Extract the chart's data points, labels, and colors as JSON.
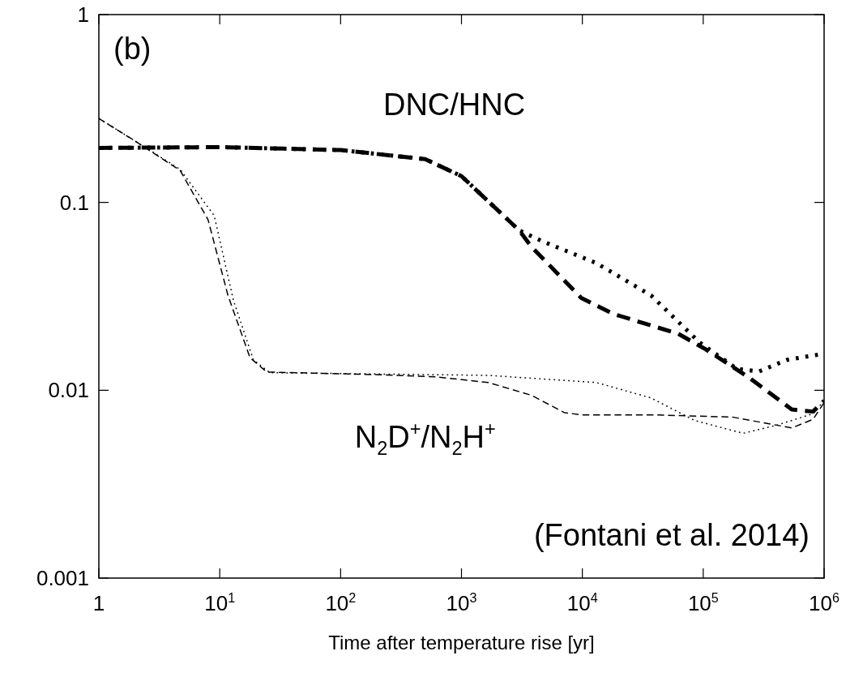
{
  "chart_data": {
    "type": "line",
    "xlabel": "Time after temperature rise [yr]",
    "log": "xy",
    "grid": false,
    "legend": false,
    "marker": "none",
    "xlim": [
      1,
      1000000
    ],
    "xticks": [
      1,
      {
        "value": 10,
        "label": "10$^{1}$"
      },
      {
        "value": 100,
        "label": "10$^{2}$"
      },
      {
        "value": 1000,
        "label": "10$^{3}$"
      },
      {
        "value": 10000,
        "label": "10$^{4}$"
      },
      {
        "value": 100000,
        "label": "10$^{5}$"
      },
      {
        "value": 1000000,
        "label": "10$^{6}$"
      }
    ],
    "ylim": [
      0.001,
      1
    ],
    "yticks": [
      0.001,
      0.01,
      0.1,
      1
    ],
    "annotations": [
      "(b)",
      "DNC/HNC",
      "N$_{2}$D$^{+}$/N$_{2}$H$^{+}$",
      "(Fontani et al. 2014)"
    ],
    "series": [
      {
        "color": "#000000",
        "line_style": "dotted",
        "x": [
          1,
          10,
          100,
          500,
          1000,
          3000,
          4700,
          13000,
          37000,
          93000,
          190000,
          290000,
          490000,
          910000
        ],
        "values": [
          0.195,
          0.197,
          0.19,
          0.17,
          0.138,
          0.071,
          0.062,
          0.0476,
          0.032,
          0.018,
          0.013,
          0.0126,
          0.0145,
          0.0155
        ]
      },
      {
        "color": "#000000",
        "line_style": "dashed",
        "x": [
          1,
          10,
          100,
          500,
          1000,
          3000,
          3800,
          9800,
          18000,
          62000,
          105000,
          234000,
          540000,
          810000,
          1000000
        ],
        "values": [
          0.195,
          0.197,
          0.19,
          0.17,
          0.138,
          0.071,
          0.058,
          0.031,
          0.0255,
          0.02,
          0.0165,
          0.0118,
          0.0079,
          0.0077,
          0.0088
        ]
      },
      {
        "color": "#000000",
        "line_style": "dashed",
        "x": [
          1,
          2,
          4.7,
          8,
          11.7,
          17.8,
          24.5,
          214,
          600,
          1660,
          3800,
          7100,
          9800,
          37000,
          174000,
          540000,
          810000,
          1000000
        ],
        "values": [
          0.28,
          0.212,
          0.148,
          0.081,
          0.032,
          0.0149,
          0.0125,
          0.0121,
          0.0118,
          0.011,
          0.0094,
          0.0076,
          0.0074,
          0.0074,
          0.0072,
          0.0063,
          0.007,
          0.0086
        ]
      },
      {
        "color": "#000000",
        "line_style": "dotted",
        "x": [
          1,
          2,
          4.7,
          9,
          13,
          19,
          26,
          214,
          1660,
          13000,
          37000,
          85000,
          214000,
          400000,
          810000,
          1000000
        ],
        "values": [
          0.28,
          0.212,
          0.15,
          0.085,
          0.03,
          0.0145,
          0.0124,
          0.0122,
          0.012,
          0.011,
          0.0091,
          0.0069,
          0.0059,
          0.0065,
          0.0075,
          0.0088
        ]
      }
    ]
  }
}
